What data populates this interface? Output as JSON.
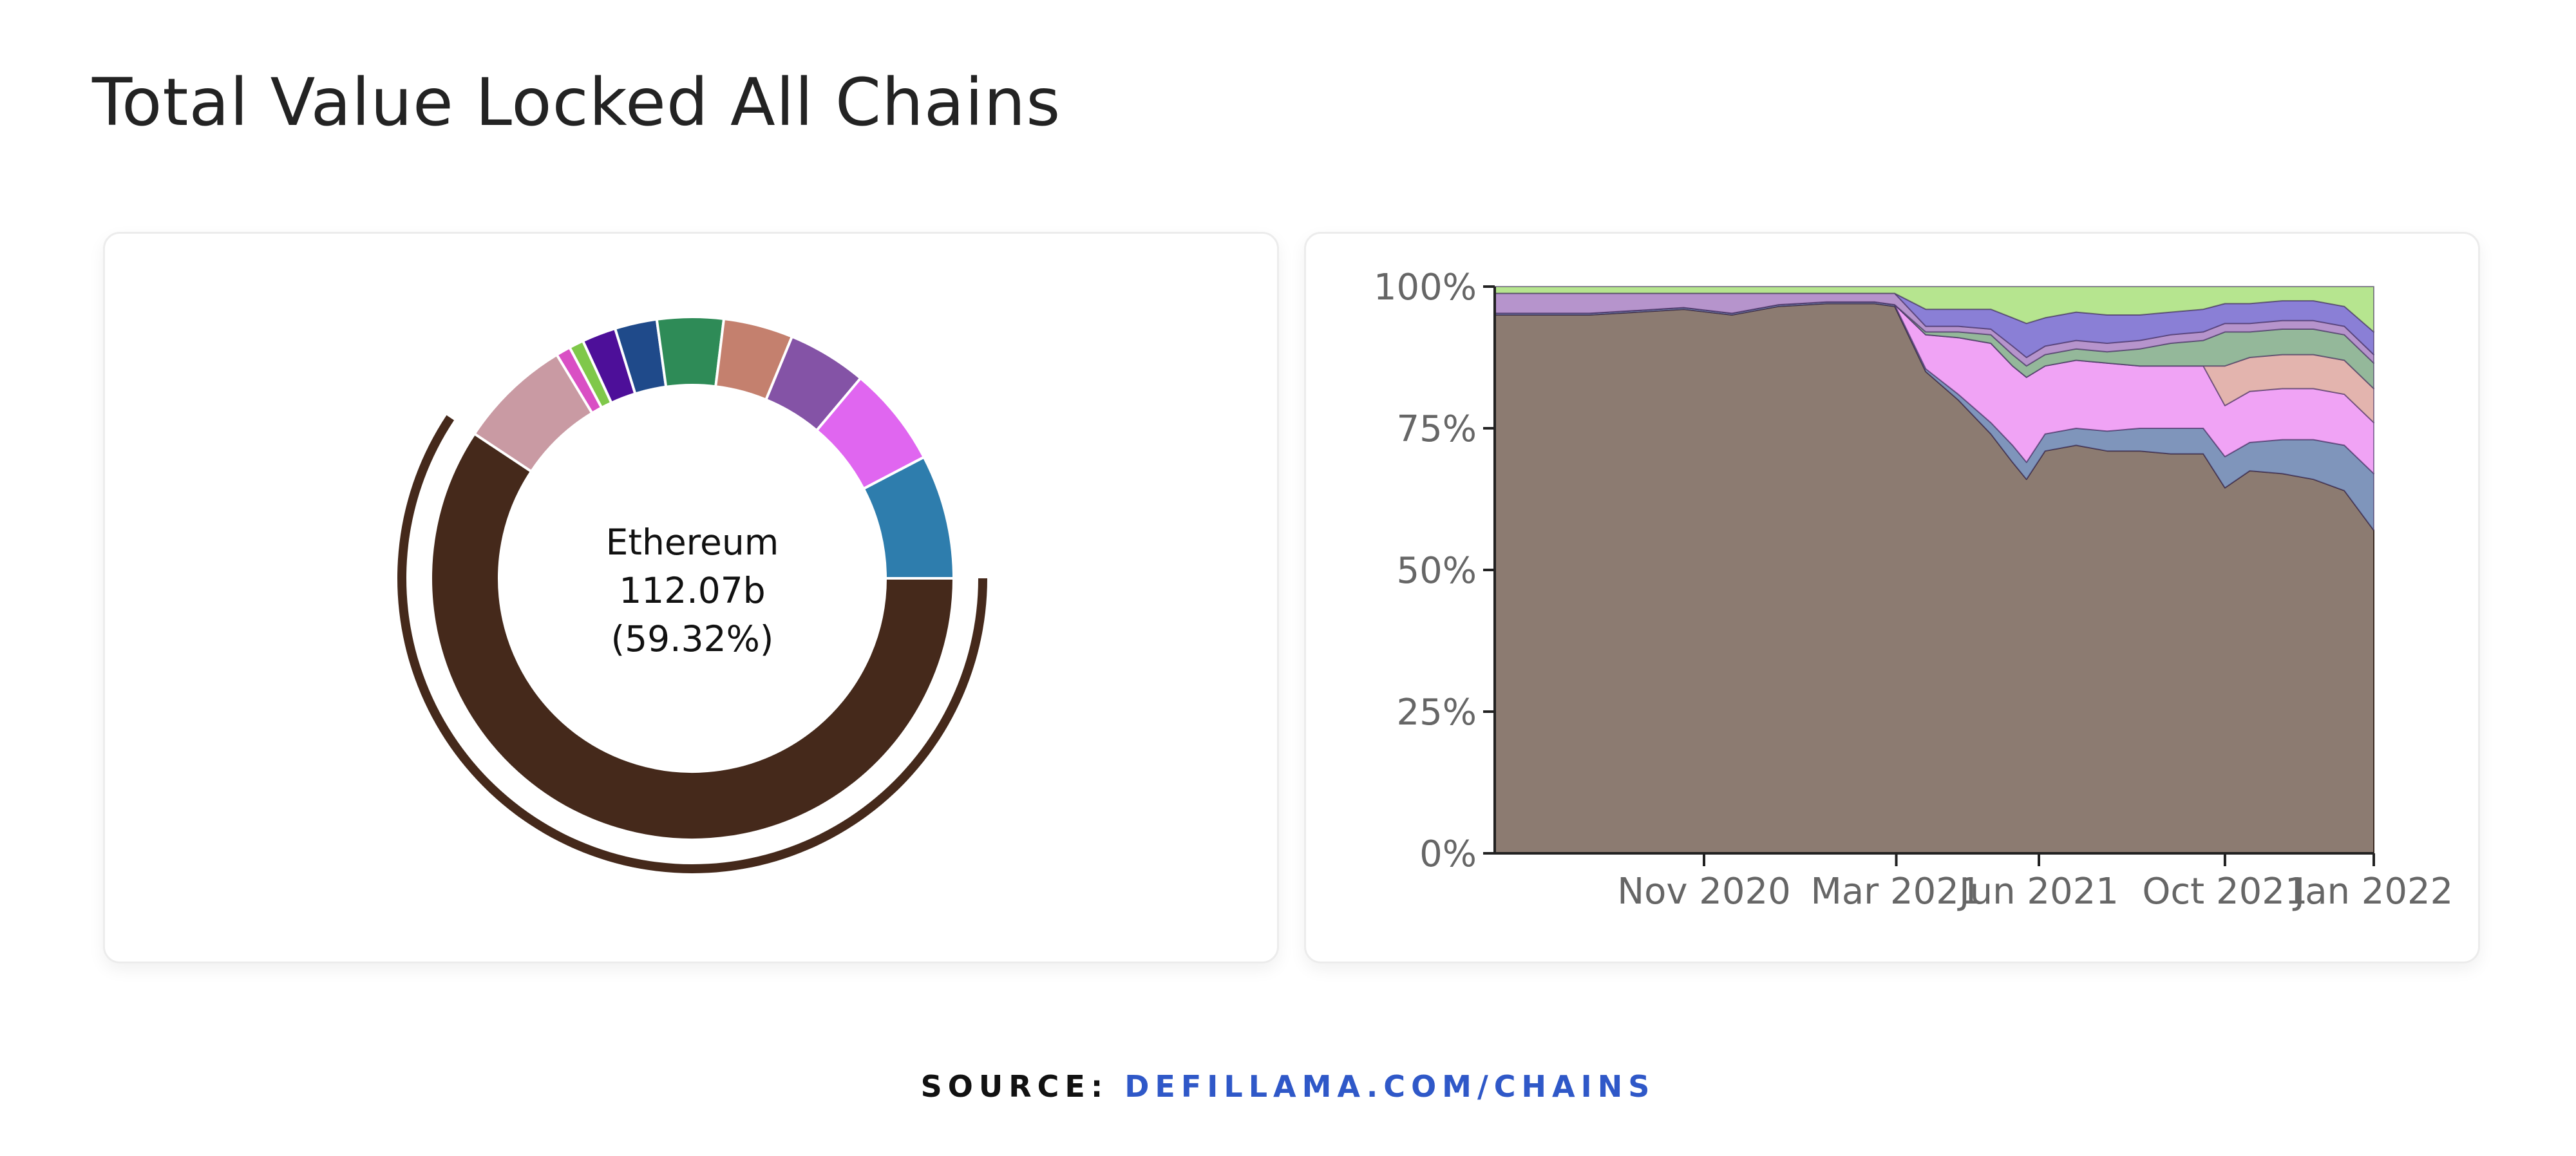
{
  "page": {
    "title": "Total Value Locked All Chains",
    "source_label": "SOURCE:",
    "source_link": "DEFILLAMA.COM/CHAINS"
  },
  "colors": {
    "ethereum": "#45291b",
    "ethereum_area": "#8c7b71",
    "link": "#2f58c8"
  },
  "chart_data": [
    {
      "type": "pie",
      "variant": "donut",
      "center_label": {
        "name": "Ethereum",
        "value": "112.07b",
        "share": "(59.32%)"
      },
      "highlighted_slice": "Ethereum",
      "slices": [
        {
          "name": "Ethereum",
          "share": 59.32,
          "color": "#45291b"
        },
        {
          "name": "",
          "share": 7.0,
          "color": "#c99aa3"
        },
        {
          "name": "",
          "share": 0.9,
          "color": "#d94fc4"
        },
        {
          "name": "",
          "share": 0.9,
          "color": "#7fc84a"
        },
        {
          "name": "",
          "share": 2.1,
          "color": "#4d0f99"
        },
        {
          "name": "",
          "share": 2.6,
          "color": "#1f4a8a"
        },
        {
          "name": "",
          "share": 4.1,
          "color": "#2e8b57"
        },
        {
          "name": "",
          "share": 4.3,
          "color": "#c4806e"
        },
        {
          "name": "",
          "share": 4.9,
          "color": "#8453a6"
        },
        {
          "name": "",
          "share": 6.2,
          "color": "#e066f0"
        },
        {
          "name": "",
          "share": 7.67,
          "color": "#2e7dad"
        }
      ]
    },
    {
      "type": "area",
      "stacked": true,
      "normalized": true,
      "y_axis": {
        "ticks": [
          "0%",
          "25%",
          "50%",
          "75%",
          "100%"
        ],
        "ylim": [
          0,
          100
        ]
      },
      "x_axis": {
        "range": [
          "2020-06-15",
          "2022-01-03"
        ],
        "ticks": [
          {
            "date": "2020-10-28",
            "label": "Nov 2020"
          },
          {
            "date": "2021-03-01",
            "label": "Mar 2021"
          },
          {
            "date": "2021-06-01",
            "label": "Jun 2021"
          },
          {
            "date": "2021-09-29",
            "label": "Oct 2021"
          },
          {
            "date": "2022-01-03",
            "label": "Jan 2022"
          }
        ]
      },
      "x": [
        "2020-06-15",
        "2020-07-15",
        "2020-08-15",
        "2020-09-15",
        "2020-10-15",
        "2020-11-15",
        "2020-12-15",
        "2021-01-15",
        "2021-02-15",
        "2021-02-28",
        "2021-03-20",
        "2021-04-10",
        "2021-05-01",
        "2021-05-15",
        "2021-05-24",
        "2021-06-05",
        "2021-06-25",
        "2021-07-15",
        "2021-08-05",
        "2021-08-25",
        "2021-09-15",
        "2021-09-29",
        "2021-10-15",
        "2021-11-05",
        "2021-11-25",
        "2021-12-15",
        "2022-01-03"
      ],
      "series": [
        {
          "color": "#8c7b71",
          "values": [
            95,
            95,
            95,
            95.5,
            96,
            95,
            96.5,
            97,
            97,
            96.5,
            85,
            80,
            74,
            69,
            66,
            71,
            72,
            71,
            71,
            70.5,
            70.5,
            64.5,
            67.5,
            67,
            66,
            64,
            57
          ]
        },
        {
          "color": "#7f95bb",
          "values": [
            0.3,
            0.3,
            0.3,
            0.3,
            0.3,
            0.3,
            0.3,
            0.3,
            0.3,
            0.3,
            0.5,
            1,
            2,
            3,
            3,
            3,
            3,
            3.5,
            4,
            4.5,
            4.5,
            5.5,
            5,
            6,
            7,
            8,
            10
          ]
        },
        {
          "color": "#f0a3f5",
          "values": [
            0,
            0,
            0,
            0,
            0,
            0,
            0,
            0,
            0,
            0,
            6,
            10,
            14,
            14,
            15,
            12,
            12,
            12,
            11,
            11,
            11,
            9,
            9,
            9,
            9,
            9,
            9
          ]
        },
        {
          "color": "#e3b4ae",
          "values": [
            0,
            0,
            0,
            0,
            0,
            0,
            0,
            0,
            0,
            0,
            0,
            0,
            0,
            0,
            0,
            0,
            0,
            0,
            0,
            0,
            0,
            7,
            6,
            6,
            6,
            6,
            6
          ]
        },
        {
          "color": "#94b89a",
          "values": [
            0,
            0,
            0,
            0,
            0,
            0,
            0,
            0,
            0,
            0,
            0.5,
            1,
            1.5,
            2,
            2,
            2,
            2,
            2,
            3,
            4,
            4.5,
            6,
            4.5,
            4.5,
            4.5,
            4.5,
            4.5
          ]
        },
        {
          "color": "#b694cc",
          "values": [
            3.5,
            3.5,
            3.5,
            3,
            2.5,
            3.5,
            2,
            1.5,
            1.5,
            2,
            1,
            1,
            1,
            1.5,
            1.5,
            1.5,
            1.5,
            1.5,
            1.5,
            1.5,
            1.5,
            1.5,
            1.5,
            1.5,
            1.5,
            1.5,
            1.5
          ]
        },
        {
          "color": "#8a7fd6",
          "values": [
            0,
            0,
            0,
            0,
            0,
            0,
            0,
            0,
            0,
            0,
            3,
            3,
            3.5,
            5,
            6,
            5,
            5,
            5,
            4.5,
            4,
            4,
            3.5,
            3.5,
            3.5,
            3.5,
            3.5,
            4
          ]
        },
        {
          "color": "#b6e58f",
          "values": [
            1.2,
            1.2,
            1.2,
            1.2,
            1.2,
            1.2,
            1.2,
            1.2,
            1.2,
            1.2,
            4,
            4,
            4,
            5.5,
            6.5,
            5.5,
            4.5,
            5,
            5,
            4.5,
            4,
            3,
            3,
            2.5,
            2.5,
            3.5,
            8
          ]
        }
      ]
    }
  ]
}
